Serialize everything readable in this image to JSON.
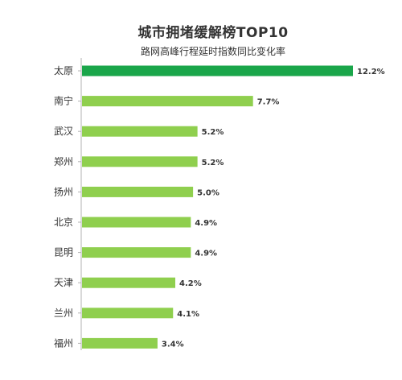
{
  "chart_data": {
    "type": "bar",
    "orientation": "horizontal",
    "title": "城市拥堵缓解榜TOP10",
    "subtitle": "路网高峰行程延时指数同比变化率",
    "categories": [
      "太原",
      "南宁",
      "武汉",
      "郑州",
      "扬州",
      "北京",
      "昆明",
      "天津",
      "兰州",
      "福州"
    ],
    "values": [
      12.2,
      7.7,
      5.2,
      5.2,
      5.0,
      4.9,
      4.9,
      4.2,
      4.1,
      3.4
    ],
    "value_labels": [
      "12.2%",
      "7.7%",
      "5.2%",
      "5.2%",
      "5.0%",
      "4.9%",
      "4.9%",
      "4.2%",
      "4.1%",
      "3.4%"
    ],
    "unit": "%",
    "xlim": [
      0,
      12.2
    ],
    "grid": false,
    "legend": "none",
    "colors": {
      "highlight": "#1aa64a",
      "bar": "#8fcf4e",
      "axis": "#b3b3b3",
      "text": "#333333"
    }
  }
}
